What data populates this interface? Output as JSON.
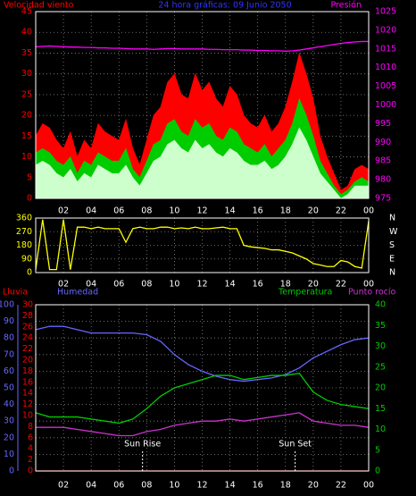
{
  "chart_data": [
    {
      "type": "area",
      "title": "24 hora gráficas: 09 Junio 2050",
      "ylabel": "Velocidad viento",
      "y2label": "Presión",
      "title_color": "#3333ff",
      "axis_colors": {
        "y": "#ff0000",
        "y2": "#ff00ff"
      },
      "grid": true,
      "x": [
        0,
        0.5,
        1,
        1.5,
        2,
        2.5,
        3,
        3.5,
        4,
        4.5,
        5,
        5.5,
        6,
        6.5,
        7,
        7.5,
        8,
        8.5,
        9,
        9.5,
        10,
        10.5,
        11,
        11.5,
        12,
        12.5,
        13,
        13.5,
        14,
        14.5,
        15,
        15.5,
        16,
        16.5,
        17,
        17.5,
        18,
        18.5,
        19,
        19.5,
        20,
        20.5,
        21,
        21.5,
        22,
        22.5,
        23,
        23.5,
        24
      ],
      "xlim": [
        0,
        24
      ],
      "xticks": [
        {
          "value": 2,
          "label": "02"
        },
        {
          "value": 4,
          "label": "04"
        },
        {
          "value": 6,
          "label": "06"
        },
        {
          "value": 8,
          "label": "08"
        },
        10,
        12,
        14,
        16,
        18,
        20,
        22,
        {
          "value": 24,
          "label": "00"
        }
      ],
      "ylim": [
        0,
        45
      ],
      "yticks": [
        0,
        5,
        10,
        15,
        20,
        25,
        30,
        35,
        40,
        45
      ],
      "y2lim": [
        975,
        1025
      ],
      "y2ticks": [
        975,
        980,
        985,
        990,
        995,
        1000,
        1005,
        1010,
        1015,
        1020,
        1025
      ],
      "series": [
        {
          "color": "#ff0000",
          "values": [
            15,
            18,
            17,
            14,
            12,
            16,
            10,
            14,
            12,
            18,
            16,
            15,
            14,
            19,
            12,
            8,
            14,
            20,
            22,
            28,
            30,
            25,
            24,
            30,
            26,
            28,
            24,
            22,
            27,
            25,
            20,
            18,
            17,
            20,
            16,
            18,
            22,
            28,
            35,
            30,
            24,
            15,
            10,
            6,
            2,
            3,
            7,
            8,
            7
          ]
        },
        {
          "color": "#00cc00",
          "values": [
            11,
            12,
            11,
            9,
            8,
            10,
            6,
            9,
            8,
            11,
            10,
            9,
            9,
            12,
            7,
            5,
            9,
            13,
            14,
            18,
            19,
            16,
            15,
            19,
            17,
            18,
            15,
            14,
            17,
            16,
            13,
            12,
            11,
            13,
            10,
            12,
            14,
            18,
            24,
            20,
            15,
            9,
            6,
            3,
            1,
            2,
            4,
            5,
            4
          ]
        },
        {
          "color": "#ccffcc",
          "values": [
            8,
            9,
            8,
            6,
            5,
            7,
            4,
            6,
            5,
            8,
            7,
            6,
            6,
            8,
            5,
            3,
            6,
            9,
            10,
            13,
            14,
            12,
            11,
            14,
            12,
            13,
            11,
            10,
            12,
            11,
            9,
            8,
            8,
            9,
            7,
            8,
            10,
            13,
            17,
            14,
            10,
            6,
            4,
            2,
            0,
            1,
            3,
            3,
            3
          ]
        },
        {
          "color": "#ff00ff",
          "axis": "y2",
          "values": [
            1015.6,
            1015.7,
            1015.8,
            1015.7,
            1015.6,
            1015.5,
            1015.5,
            1015.4,
            1015.4,
            1015.3,
            1015.3,
            1015.2,
            1015.2,
            1015.1,
            1015.0,
            1015.0,
            1015.0,
            1014.9,
            1015.0,
            1015.1,
            1015.1,
            1015.0,
            1015.0,
            1015.0,
            1015.0,
            1014.9,
            1014.9,
            1014.8,
            1014.8,
            1014.8,
            1014.7,
            1014.7,
            1014.6,
            1014.6,
            1014.5,
            1014.5,
            1014.4,
            1014.5,
            1014.7,
            1015.0,
            1015.3,
            1015.6,
            1015.9,
            1016.2,
            1016.5,
            1016.7,
            1016.9,
            1017.0,
            1017.0
          ]
        }
      ]
    },
    {
      "type": "line",
      "axis_colors": {
        "y": "#ffff00",
        "y2": "#ffffff"
      },
      "grid": true,
      "x": [
        0,
        0.5,
        1,
        1.5,
        2,
        2.5,
        3,
        3.5,
        4,
        4.5,
        5,
        5.5,
        6,
        6.5,
        7,
        7.5,
        8,
        8.5,
        9,
        9.5,
        10,
        10.5,
        11,
        11.5,
        12,
        12.5,
        13,
        13.5,
        14,
        14.5,
        15,
        15.5,
        16,
        16.5,
        17,
        17.5,
        18,
        18.5,
        19,
        19.5,
        20,
        20.5,
        21,
        21.5,
        22,
        22.5,
        23,
        23.5,
        24
      ],
      "xlim": [
        0,
        24
      ],
      "xticks": [
        {
          "value": 2,
          "label": "02"
        },
        {
          "value": 4,
          "label": "04"
        },
        {
          "value": 6,
          "label": "06"
        },
        {
          "value": 8,
          "label": "08"
        },
        10,
        12,
        14,
        16,
        18,
        20,
        22,
        {
          "value": 24,
          "label": "00"
        }
      ],
      "ylim": [
        0,
        360
      ],
      "yticks": [
        0,
        90,
        180,
        270,
        360
      ],
      "y2lim": [
        0,
        360
      ],
      "y2ticks": [
        {
          "value": 0,
          "label": "N"
        },
        {
          "value": 90,
          "label": "E"
        },
        {
          "value": 180,
          "label": "S"
        },
        {
          "value": 270,
          "label": "W"
        },
        {
          "value": 360,
          "label": "N"
        }
      ],
      "series": [
        {
          "color": "#ffff00",
          "values": [
            20,
            350,
            20,
            20,
            350,
            20,
            300,
            300,
            290,
            300,
            290,
            290,
            290,
            200,
            290,
            300,
            290,
            290,
            300,
            300,
            290,
            295,
            290,
            300,
            290,
            290,
            295,
            300,
            290,
            290,
            180,
            170,
            165,
            160,
            150,
            150,
            140,
            130,
            110,
            90,
            60,
            50,
            40,
            40,
            80,
            70,
            40,
            30,
            340
          ]
        }
      ]
    },
    {
      "type": "line",
      "axis_colors": {
        "y": "#6666ff",
        "y2": "#00cc00",
        "y3": "#ff0000"
      },
      "grid": true,
      "x": [
        0,
        1,
        2,
        3,
        4,
        5,
        6,
        7,
        8,
        9,
        10,
        11,
        12,
        13,
        14,
        15,
        16,
        17,
        18,
        19,
        20,
        21,
        22,
        23,
        24
      ],
      "xlim": [
        0,
        24
      ],
      "xticks": [
        {
          "value": 2,
          "label": "02"
        },
        {
          "value": 4,
          "label": "04"
        },
        {
          "value": 6,
          "label": "06"
        },
        {
          "value": 8,
          "label": "08"
        },
        10,
        12,
        14,
        16,
        18,
        20,
        22,
        {
          "value": 24,
          "label": "00"
        }
      ],
      "ylim": [
        0,
        100
      ],
      "yticks": [
        0,
        10,
        20,
        30,
        40,
        50,
        60,
        70,
        80,
        90,
        100
      ],
      "y3lim": [
        0,
        30
      ],
      "y3ticks": [
        0,
        2,
        4,
        6,
        8,
        10,
        12,
        14,
        16,
        18,
        20,
        22,
        24,
        26,
        28,
        30
      ],
      "y2lim": [
        0,
        40
      ],
      "y2ticks": [
        0,
        5,
        10,
        15,
        20,
        25,
        30,
        35,
        40
      ],
      "annotations": [
        {
          "x": 7.7,
          "text": "Sun Rise"
        },
        {
          "x": 18.7,
          "text": "Sun Set"
        }
      ],
      "series": [
        {
          "name": "Lluvia",
          "color": "#ff0000",
          "axis": "y3",
          "values": [
            0,
            0,
            0,
            0,
            0,
            0,
            0,
            0,
            0,
            0,
            0,
            0,
            0,
            0,
            0,
            0,
            0,
            0,
            0,
            0,
            0,
            0,
            0,
            0,
            0
          ]
        },
        {
          "name": "Humedad",
          "color": "#6666ff",
          "values": [
            85,
            87,
            87,
            85,
            83,
            83,
            83,
            83,
            82,
            78,
            70,
            64,
            60,
            57,
            55,
            54,
            55,
            56,
            58,
            62,
            68,
            72,
            76,
            79,
            80
          ]
        },
        {
          "name": "Temperatura",
          "color": "#00cc00",
          "axis": "y2",
          "values": [
            14,
            13,
            13,
            13,
            12.5,
            12,
            11.5,
            12.5,
            15,
            18,
            20,
            21,
            22,
            23,
            23,
            22,
            22.5,
            23,
            23,
            23.5,
            19,
            17,
            16,
            15.5,
            15
          ]
        },
        {
          "name": "Punto rocío",
          "color": "#cc33cc",
          "axis": "y2",
          "values": [
            10.5,
            10.5,
            10.5,
            10,
            9.5,
            9,
            8.5,
            8.5,
            9.5,
            10,
            11,
            11.5,
            12,
            12,
            12.5,
            12,
            12.5,
            13,
            13.5,
            14,
            12,
            11.5,
            11,
            11,
            10.5
          ]
        }
      ]
    }
  ]
}
